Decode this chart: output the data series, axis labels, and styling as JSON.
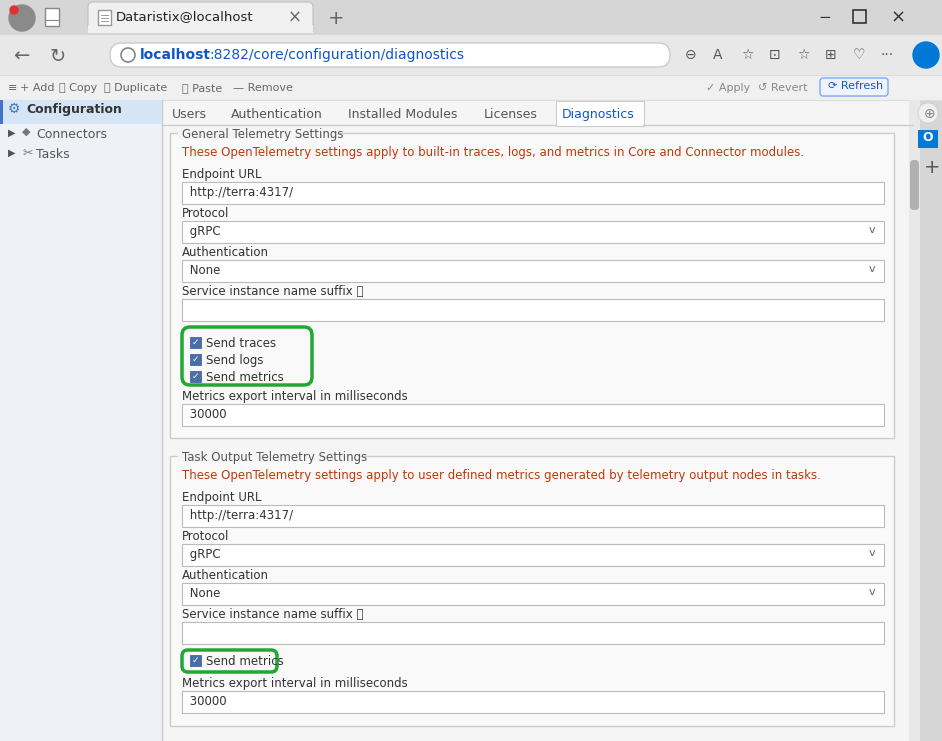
{
  "browser_bg": "#d6d6d6",
  "titlebar_bg": "#d6d6d6",
  "tab_active_bg": "#f0f0f0",
  "tab_title": "Dataristix@localhost",
  "url_text": "localhost:8282/core/configuration/diagnostics",
  "url_bold_part": "localhost",
  "toolbar_bg": "#f0f0f0",
  "sidebar_bg": "#eef2f7",
  "sidebar_selected_bg": "#d5e5f5",
  "sidebar_items": [
    "Configuration",
    "Connectors",
    "Tasks"
  ],
  "nav_tabs": [
    "Users",
    "Authentication",
    "Installed Modules",
    "Licenses",
    "Diagnostics"
  ],
  "active_tab": "Diagnostics",
  "content_bg": "#f5f5f5",
  "section_bg": "#f9f9f9",
  "section_border": "#cccccc",
  "section1_title": "General Telemetry Settings",
  "section1_desc": "These OpenTelemetry settings apply to built-in traces, logs, and metrics in Core and Connector modules.",
  "section1_fields": [
    {
      "label": "Endpoint URL",
      "value": " http://terra:4317/",
      "type": "input"
    },
    {
      "label": "Protocol",
      "value": " gRPC",
      "type": "dropdown"
    },
    {
      "label": "Authentication",
      "value": " None",
      "type": "dropdown"
    },
    {
      "label": "Service instance name suffix",
      "value": "",
      "type": "input"
    }
  ],
  "section1_checkboxes": [
    "Send traces",
    "Send logs",
    "Send metrics"
  ],
  "section1_metrics_label": "Metrics export interval in milliseconds",
  "section1_metrics_value": " 30000",
  "section2_title": "Task Output Telemetry Settings",
  "section2_desc": "These OpenTelemetry settings apply to user defined metrics generated by telemetry output nodes in tasks.",
  "section2_fields": [
    {
      "label": "Endpoint URL",
      "value": " http://terra:4317/",
      "type": "input"
    },
    {
      "label": "Protocol",
      "value": " gRPC",
      "type": "dropdown"
    },
    {
      "label": "Authentication",
      "value": " None",
      "type": "dropdown"
    },
    {
      "label": "Service instance name suffix",
      "value": "",
      "type": "input"
    }
  ],
  "section2_checkboxes": [
    "Send metrics"
  ],
  "section2_metrics_label": "Metrics export interval in milliseconds",
  "section2_metrics_value": " 30000",
  "green_border_color": "#1fa832",
  "checkbox_color": "#4a6fa5",
  "label_color": "#333333",
  "field_border_color": "#bbbbbb",
  "field_text_color": "#333333",
  "desc_color": "#c0390a",
  "input_bg": "#ffffff",
  "tab_line_color": "#cccccc",
  "active_tab_color": "#1a73e8",
  "scrollbar_bg": "#e0e0e0",
  "scrollbar_thumb": "#b0b0b0",
  "right_icon_bg": "#f5f5f5"
}
